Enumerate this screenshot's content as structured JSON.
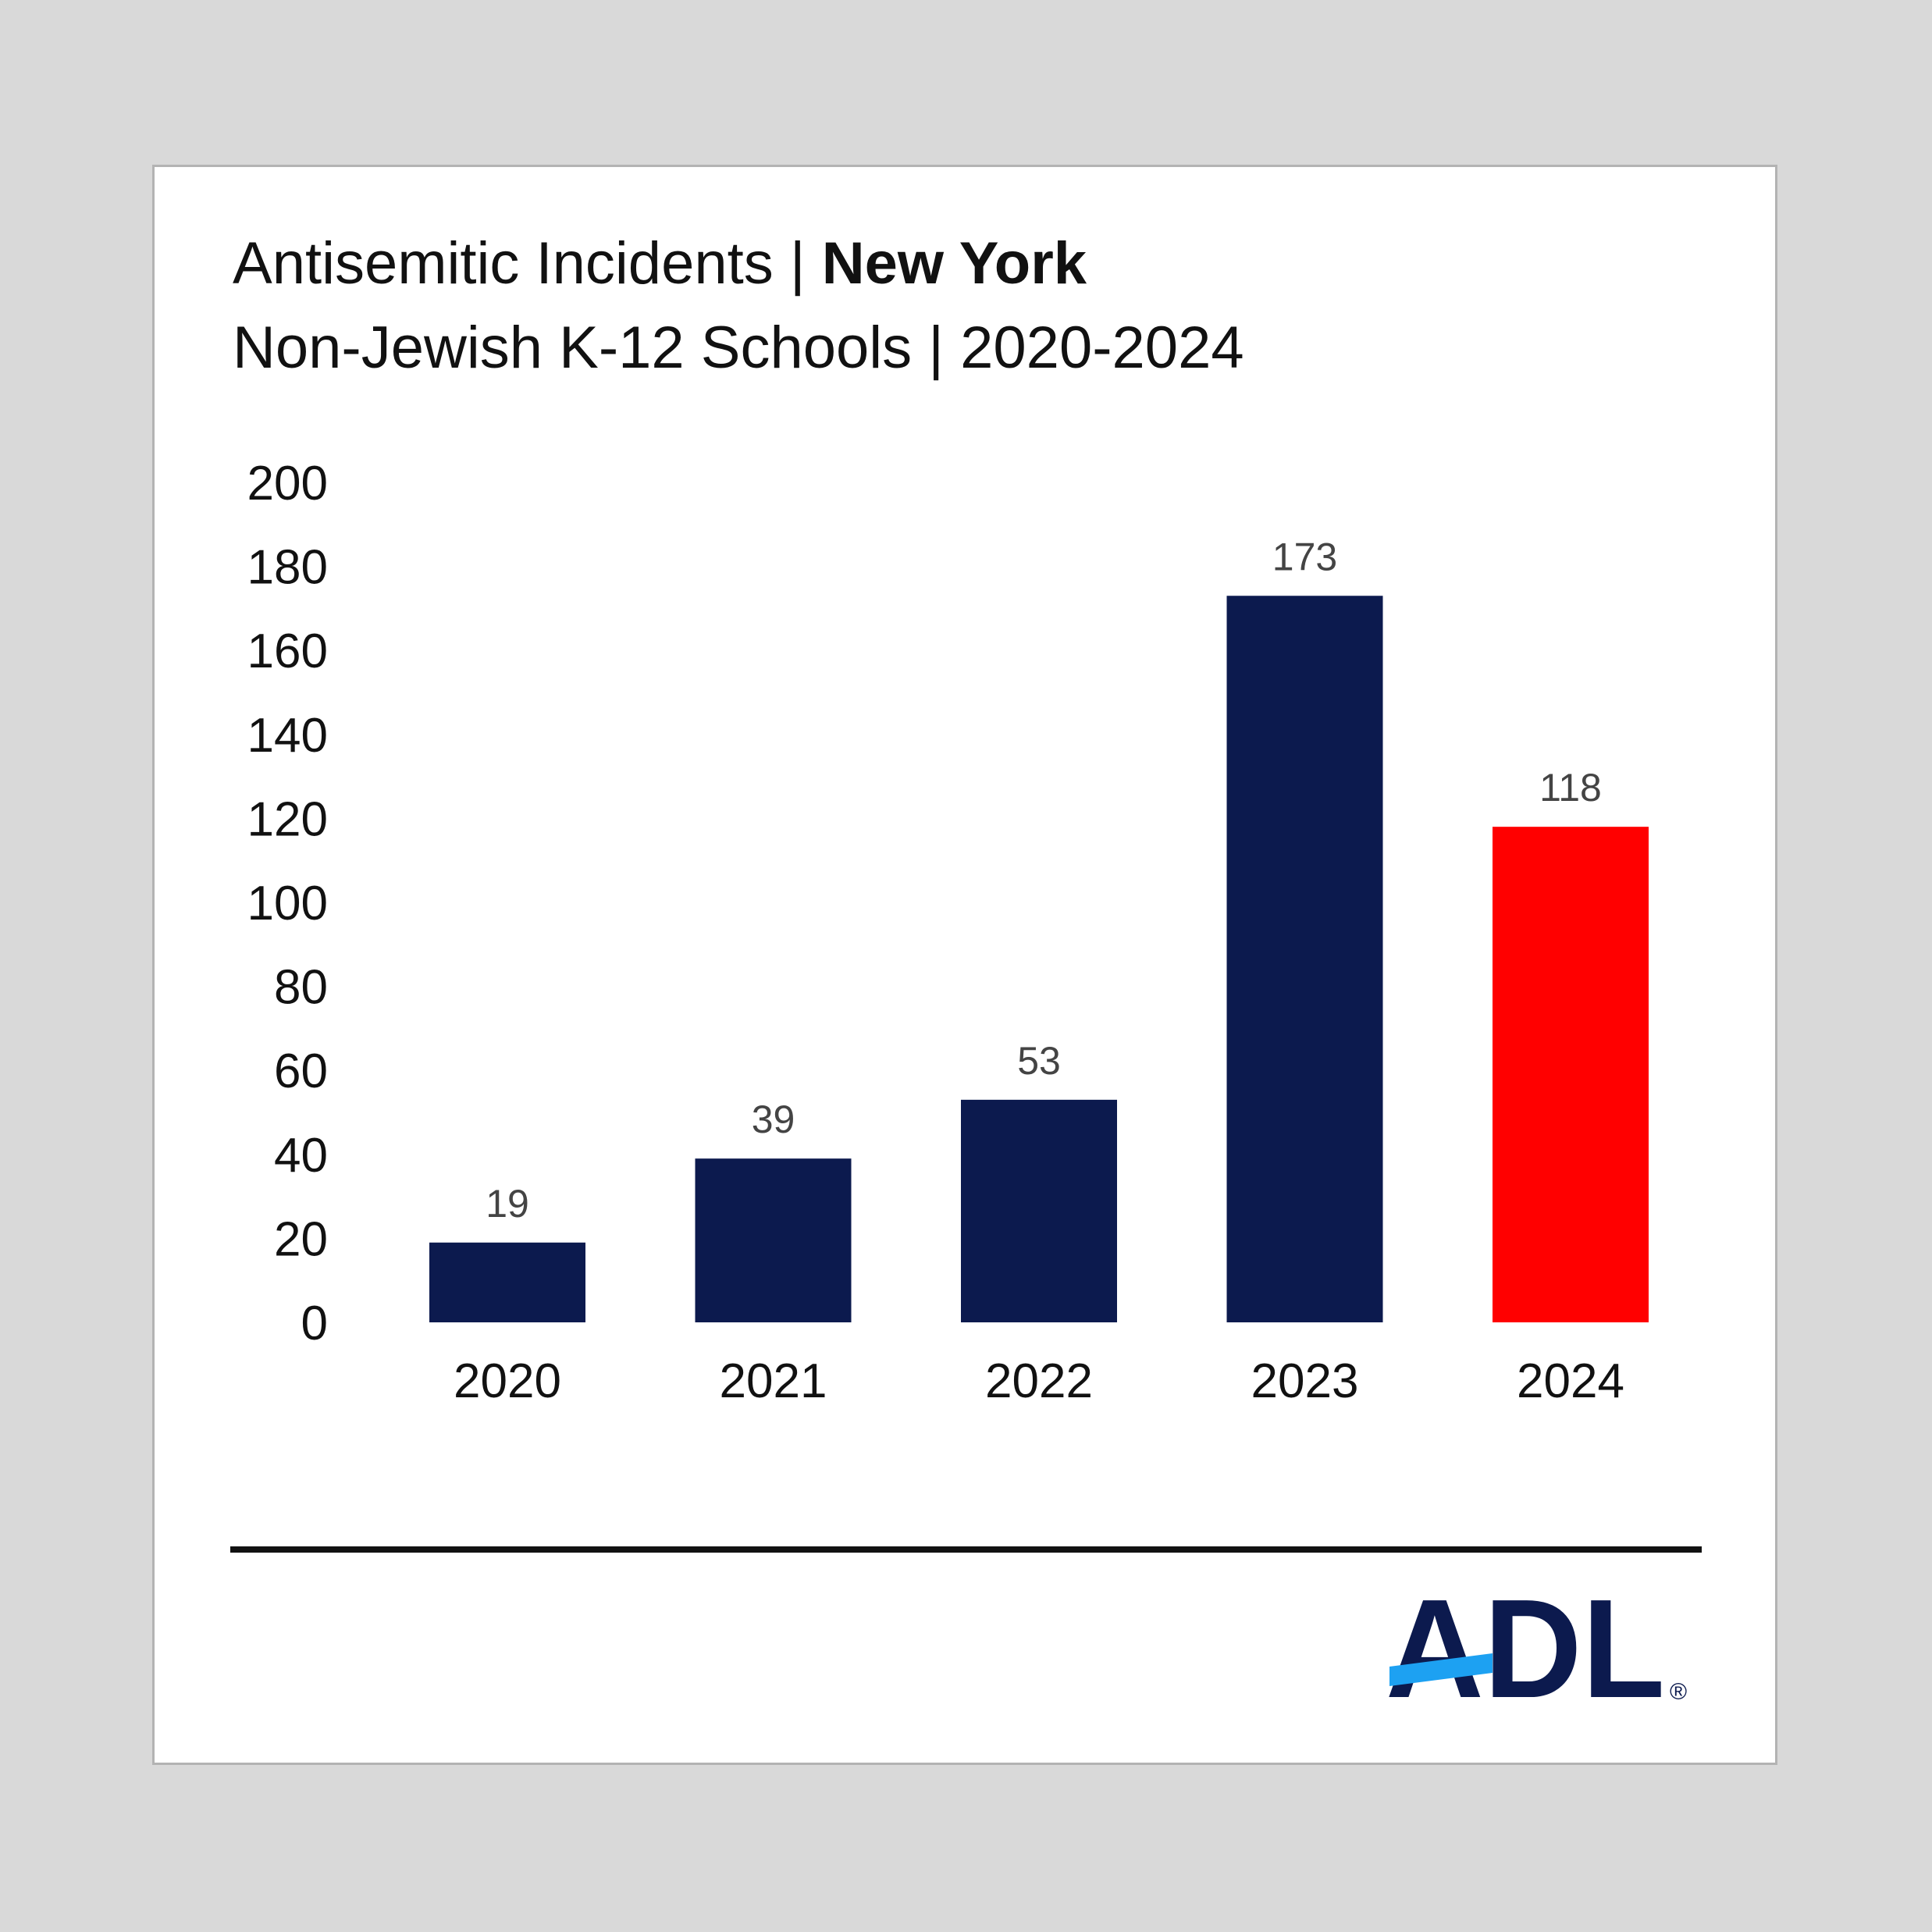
{
  "header": {
    "title_prefix": "Antisemitic Incidents | ",
    "title_emphasis": "New York",
    "subtitle": "Non-Jewish K-12 Schools | 2020-2024"
  },
  "chart_data": {
    "type": "bar",
    "categories": [
      "2020",
      "2021",
      "2022",
      "2023",
      "2024"
    ],
    "values": [
      19,
      39,
      53,
      173,
      118
    ],
    "ylim": [
      0,
      200
    ],
    "yticks": [
      0,
      20,
      40,
      60,
      80,
      100,
      120,
      140,
      160,
      180,
      200
    ],
    "grid": false,
    "legend": "none",
    "bar_colors": [
      "#0c1a4e",
      "#0c1a4e",
      "#0c1a4e",
      "#0c1a4e",
      "#ff0000"
    ],
    "data_labels": true
  },
  "logo": {
    "text": "ADL",
    "mark": "®",
    "color": "#0c1a4e",
    "accent": "#1da1f2"
  }
}
